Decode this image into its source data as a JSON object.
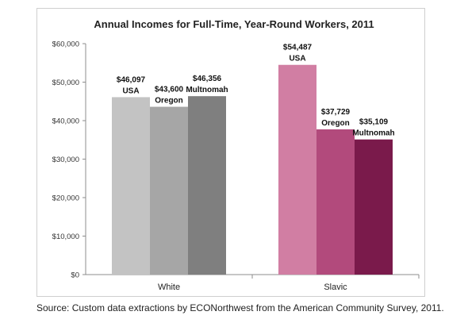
{
  "chart_data": {
    "type": "bar",
    "title": "Annual Incomes for Full-Time, Year-Round Workers, 2011",
    "categories": [
      "White",
      "Slavic"
    ],
    "ylim": [
      0,
      60000
    ],
    "y_ticks": [
      "$0",
      "$10,000",
      "$20,000",
      "$30,000",
      "$40,000",
      "$50,000",
      "$60,000"
    ],
    "grid": false,
    "legend": "none",
    "bar_groups": [
      {
        "category": "White",
        "bars": [
          {
            "name": "USA",
            "value": 46097,
            "value_label": "$46,097",
            "color": "#c3c3c3"
          },
          {
            "name": "Oregon",
            "value": 43600,
            "value_label": "$43,600",
            "color": "#a6a6a6"
          },
          {
            "name": "Multnomah",
            "value": 46356,
            "value_label": "$46,356",
            "color": "#7f7f7f"
          }
        ]
      },
      {
        "category": "Slavic",
        "bars": [
          {
            "name": "USA",
            "value": 54487,
            "value_label": "$54,487",
            "color": "#d17ea3"
          },
          {
            "name": "Oregon",
            "value": 37729,
            "value_label": "$37,729",
            "color": "#b24a7c"
          },
          {
            "name": "Multnomah",
            "value": 35109,
            "value_label": "$35,109",
            "color": "#7a1a4b"
          }
        ]
      }
    ]
  },
  "source": "Source: Custom data extractions by ECONorthwest from the American Community Survey, 2011."
}
